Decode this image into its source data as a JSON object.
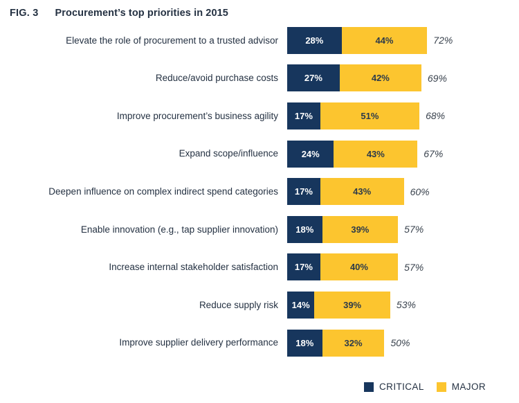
{
  "figure": {
    "fig_label": "FIG. 3",
    "title": "Procurement’s top priorities in 2015"
  },
  "colors": {
    "critical_navy": "#17365D",
    "major_yellow": "#FCC52F",
    "text_dark": "#243142"
  },
  "legend": {
    "items": [
      {
        "name": "CRITICAL"
      },
      {
        "name": "MAJOR"
      }
    ]
  },
  "chart_data": {
    "type": "bar",
    "orientation": "horizontal",
    "stacked": true,
    "title": "FIG. 3  Procurement’s top priorities in 2015",
    "categories": [
      "Elevate the role of procurement to a trusted advisor",
      "Reduce/avoid purchase costs",
      "Improve procurement’s business agility",
      "Expand scope/influence",
      "Deepen influence on complex indirect spend categories",
      "Enable innovation (e.g., tap supplier innovation)",
      "Increase internal stakeholder satisfaction",
      "Reduce supply risk",
      "Improve supplier delivery performance"
    ],
    "series": [
      {
        "name": "CRITICAL",
        "values": [
          28,
          27,
          17,
          24,
          17,
          18,
          17,
          14,
          18
        ]
      },
      {
        "name": "MAJOR",
        "values": [
          44,
          42,
          51,
          43,
          43,
          39,
          40,
          39,
          32
        ]
      }
    ],
    "totals": [
      72,
      69,
      68,
      67,
      60,
      57,
      57,
      53,
      50
    ],
    "value_suffix": "%",
    "xlim": [
      0,
      100
    ],
    "grid": false,
    "legend_position": "bottom-right",
    "value_labels": "inside-segments"
  }
}
